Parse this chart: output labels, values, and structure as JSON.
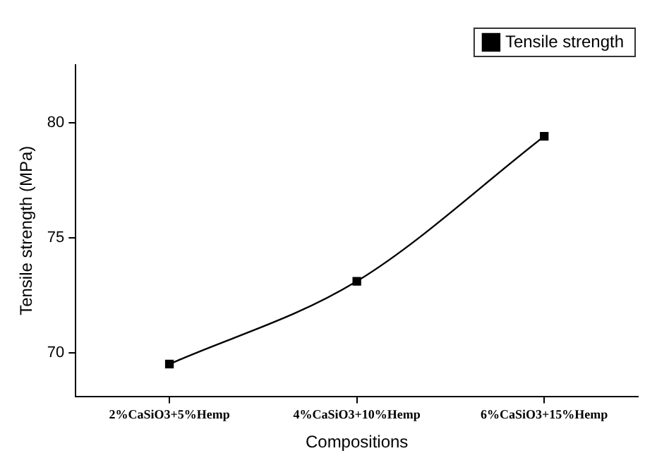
{
  "chart_data": {
    "type": "line",
    "xlabel": "Compositions",
    "ylabel": "Tensile strength (MPa)",
    "categories": [
      "2%CaSiO3+5%Hemp",
      "4%CaSiO3+10%Hemp",
      "6%CaSiO3+15%Hemp"
    ],
    "series": [
      {
        "name": "Tensile strength",
        "color": "#000000",
        "values": [
          69.5,
          73.1,
          79.4
        ]
      }
    ],
    "ylim": [
      68.1,
      82.5
    ],
    "yticks": [
      70,
      75,
      80
    ],
    "grid": false,
    "legend": "top right",
    "marker": "square",
    "line_style": "solid"
  }
}
